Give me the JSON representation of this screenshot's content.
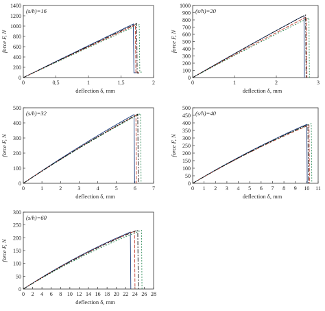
{
  "chart_data": [
    {
      "type": "line",
      "annotation": "(s/h)=16",
      "xlabel": "deflection δ, mm",
      "ylabel": "force F, N",
      "xlim": [
        0,
        2
      ],
      "ylim": [
        0,
        1400
      ],
      "xticks": [
        "0",
        "0,5",
        "1",
        "1,5",
        "2"
      ],
      "xtick_values": [
        0,
        0.5,
        1,
        1.5,
        2
      ],
      "yticks": [
        "0",
        "200",
        "400",
        "600",
        "800",
        "1000",
        "1200",
        "1400"
      ],
      "ytick_values": [
        0,
        200,
        400,
        600,
        800,
        1000,
        1200,
        1400
      ],
      "grid": false,
      "series": [
        {
          "color": "#1a3a7a",
          "dash": "solid",
          "peak": [
            1.69,
            1040
          ],
          "drop": 95
        },
        {
          "color": "#c0392b",
          "dash": "5,2",
          "peak": [
            1.72,
            1020
          ],
          "drop": 100
        },
        {
          "color": "#2e8b57",
          "dash": "2,2",
          "peak": [
            1.78,
            1030
          ],
          "drop": 105
        },
        {
          "color": "#111111",
          "dash": "6,2,2,2",
          "peak": [
            1.74,
            1050
          ],
          "drop": 90
        }
      ]
    },
    {
      "type": "line",
      "annotation": "(s/h)=20",
      "xlabel": "deflection δ, mm",
      "ylabel": "force F, N",
      "xlim": [
        0,
        3
      ],
      "ylim": [
        0,
        1000
      ],
      "xticks": [
        "0",
        "1",
        "2",
        "3"
      ],
      "xtick_values": [
        0,
        1,
        2,
        3
      ],
      "yticks": [
        "0",
        "100",
        "200",
        "300",
        "400",
        "500",
        "600",
        "700",
        "800",
        "900",
        "1000"
      ],
      "ytick_values": [
        0,
        100,
        200,
        300,
        400,
        500,
        600,
        700,
        800,
        900,
        1000
      ],
      "grid": false,
      "series": [
        {
          "color": "#1a3a7a",
          "dash": "solid",
          "peak": [
            2.66,
            860
          ],
          "drop": 0
        },
        {
          "color": "#c0392b",
          "dash": "5,2",
          "peak": [
            2.72,
            840
          ],
          "drop": 0
        },
        {
          "color": "#2e8b57",
          "dash": "2,2",
          "peak": [
            2.78,
            830
          ],
          "drop": 0
        },
        {
          "color": "#111111",
          "dash": "6,2,2,2",
          "peak": [
            2.7,
            870
          ],
          "drop": 0
        }
      ]
    },
    {
      "type": "line",
      "annotation": "(s/h)=32",
      "xlabel": "deflection δ, mm",
      "ylabel": "force F, N",
      "xlim": [
        0,
        7
      ],
      "ylim": [
        0,
        500
      ],
      "xticks": [
        "0",
        "1",
        "2",
        "3",
        "4",
        "5",
        "6",
        "7"
      ],
      "xtick_values": [
        0,
        1,
        2,
        3,
        4,
        5,
        6,
        7
      ],
      "yticks": [
        "0",
        "100",
        "200",
        "300",
        "400",
        "500"
      ],
      "ytick_values": [
        0,
        100,
        200,
        300,
        400,
        500
      ],
      "grid": false,
      "series": [
        {
          "color": "#1a3a7a",
          "dash": "solid",
          "peak": [
            5.95,
            455
          ],
          "drop": 0
        },
        {
          "color": "#c0392b",
          "dash": "5,2",
          "peak": [
            6.05,
            450
          ],
          "drop": 0
        },
        {
          "color": "#2e8b57",
          "dash": "2,2",
          "peak": [
            6.3,
            462
          ],
          "drop": 0
        },
        {
          "color": "#111111",
          "dash": "6,2,2,2",
          "peak": [
            6.15,
            458
          ],
          "drop": 0
        }
      ]
    },
    {
      "type": "line",
      "annotation": "(s/h)=40",
      "xlabel": "deflection δ, mm",
      "ylabel": "force F, N",
      "xlim": [
        0,
        11
      ],
      "ylim": [
        0,
        500
      ],
      "xticks": [
        "0",
        "1",
        "2",
        "3",
        "4",
        "5",
        "6",
        "7",
        "8",
        "9",
        "10",
        "11"
      ],
      "xtick_values": [
        0,
        1,
        2,
        3,
        4,
        5,
        6,
        7,
        8,
        9,
        10,
        11
      ],
      "yticks": [
        "0",
        "50",
        "100",
        "150",
        "200",
        "250",
        "300",
        "350",
        "400",
        "450",
        "500"
      ],
      "ytick_values": [
        0,
        50,
        100,
        150,
        200,
        250,
        300,
        350,
        400,
        450,
        500
      ],
      "grid": false,
      "series": [
        {
          "color": "#1a3a7a",
          "dash": "solid",
          "peak": [
            10.0,
            390
          ],
          "drop": 0
        },
        {
          "color": "#c0392b",
          "dash": "5,2",
          "peak": [
            10.2,
            385
          ],
          "drop": 0
        },
        {
          "color": "#2e8b57",
          "dash": "2,2",
          "peak": [
            10.4,
            395
          ],
          "drop": 0
        },
        {
          "color": "#111111",
          "dash": "6,2,2,2",
          "peak": [
            10.1,
            388
          ],
          "drop": 0
        }
      ]
    },
    {
      "type": "line",
      "annotation": "(s/h)=60",
      "xlabel": "deflection δ, mm",
      "ylabel": "force F, N",
      "xlim": [
        0,
        28
      ],
      "ylim": [
        0,
        300
      ],
      "xticks": [
        "0",
        "2",
        "4",
        "6",
        "8",
        "10",
        "12",
        "14",
        "16",
        "18",
        "20",
        "22",
        "24",
        "26",
        "28"
      ],
      "xtick_values": [
        0,
        2,
        4,
        6,
        8,
        10,
        12,
        14,
        16,
        18,
        20,
        22,
        24,
        26,
        28
      ],
      "yticks": [
        "0",
        "50",
        "100",
        "150",
        "200",
        "250",
        "300"
      ],
      "ytick_values": [
        0,
        50,
        100,
        150,
        200,
        250,
        300
      ],
      "grid": false,
      "series": [
        {
          "color": "#1a3a7a",
          "dash": "solid",
          "peak": [
            23.0,
            222
          ],
          "drop": 0
        },
        {
          "color": "#c0392b",
          "dash": "5,2",
          "peak": [
            23.9,
            226
          ],
          "drop": 0
        },
        {
          "color": "#2e8b57",
          "dash": "2,2",
          "peak": [
            25.4,
            229
          ],
          "drop": 0
        },
        {
          "color": "#111111",
          "dash": "6,2,2,2",
          "peak": [
            24.6,
            230
          ],
          "drop": 0
        }
      ]
    }
  ]
}
